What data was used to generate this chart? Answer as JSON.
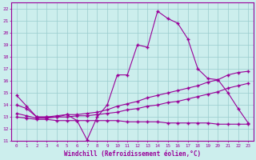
{
  "xlabel": "Windchill (Refroidissement éolien,°C)",
  "xlim": [
    -0.5,
    23.5
  ],
  "ylim": [
    11,
    22.5
  ],
  "yticks": [
    11,
    12,
    13,
    14,
    15,
    16,
    17,
    18,
    19,
    20,
    21,
    22
  ],
  "xticks": [
    0,
    1,
    2,
    3,
    4,
    5,
    6,
    7,
    8,
    9,
    10,
    11,
    12,
    13,
    14,
    15,
    16,
    17,
    18,
    19,
    20,
    21,
    22,
    23
  ],
  "bg_color": "#cceeed",
  "line_color": "#990099",
  "grid_color": "#99cccc",
  "line1_x": [
    0,
    1,
    2,
    3,
    4,
    5,
    6,
    7,
    8,
    9,
    10,
    11,
    12,
    13,
    14,
    15,
    16,
    17,
    18,
    19,
    20,
    21,
    22,
    23
  ],
  "line1_y": [
    14.8,
    13.9,
    13.0,
    13.0,
    13.0,
    13.2,
    12.7,
    11.1,
    13.0,
    14.0,
    16.5,
    16.5,
    19.0,
    18.8,
    21.8,
    21.2,
    20.8,
    19.5,
    17.0,
    16.2,
    16.1,
    15.0,
    13.7,
    12.5
  ],
  "line2_x": [
    0,
    1,
    2,
    3,
    4,
    5,
    6,
    7,
    8,
    9,
    10,
    11,
    12,
    13,
    14,
    15,
    16,
    17,
    18,
    19,
    20,
    21,
    22,
    23
  ],
  "line2_y": [
    14.0,
    13.7,
    13.0,
    13.0,
    13.1,
    13.2,
    13.2,
    13.3,
    13.4,
    13.6,
    13.9,
    14.1,
    14.3,
    14.6,
    14.8,
    15.0,
    15.2,
    15.4,
    15.6,
    15.9,
    16.1,
    16.5,
    16.7,
    16.8
  ],
  "line3_x": [
    0,
    1,
    2,
    3,
    4,
    5,
    6,
    7,
    8,
    9,
    10,
    11,
    12,
    13,
    14,
    15,
    16,
    17,
    18,
    19,
    20,
    21,
    22,
    23
  ],
  "line3_y": [
    13.3,
    13.1,
    12.9,
    12.9,
    13.0,
    13.0,
    13.1,
    13.1,
    13.2,
    13.3,
    13.4,
    13.6,
    13.7,
    13.9,
    14.0,
    14.2,
    14.3,
    14.5,
    14.7,
    14.9,
    15.1,
    15.4,
    15.6,
    15.8
  ],
  "line4_x": [
    0,
    1,
    2,
    3,
    4,
    5,
    6,
    7,
    8,
    9,
    10,
    11,
    12,
    13,
    14,
    15,
    16,
    17,
    18,
    19,
    20,
    21,
    22,
    23
  ],
  "line4_y": [
    13.0,
    12.9,
    12.8,
    12.8,
    12.7,
    12.7,
    12.7,
    12.7,
    12.7,
    12.7,
    12.7,
    12.6,
    12.6,
    12.6,
    12.6,
    12.5,
    12.5,
    12.5,
    12.5,
    12.5,
    12.4,
    12.4,
    12.4,
    12.4
  ]
}
